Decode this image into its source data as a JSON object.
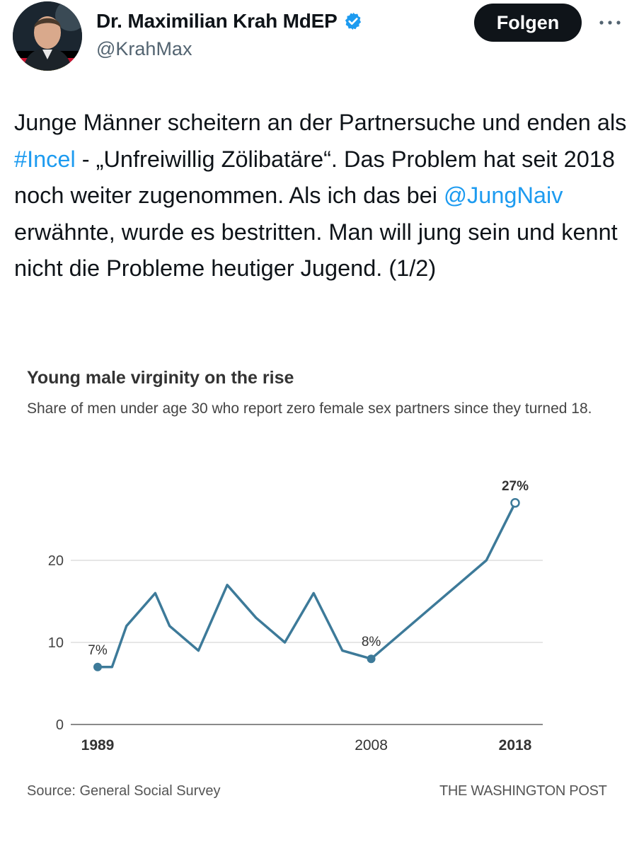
{
  "tweet": {
    "author": {
      "display_name": "Dr. Maximilian Krah MdEP",
      "handle": "@KrahMax",
      "verified": true
    },
    "follow_label": "Folgen",
    "more_icon": "more-horizontal-icon",
    "text_parts": {
      "p1": "Junge Männer scheitern an der Partnersuche und enden als ",
      "hashtag": "#Incel",
      "p2": " - „Unfreiwillig Zölibatäre“. Das Problem hat seit 2018 noch weiter zugenommen. Als ich das bei ",
      "mention": "@JungNaiv",
      "p3": " erwähnte, wurde es bestritten. Man will jung sein und kennt nicht die Probleme heutiger Jugend. (1/2)"
    }
  },
  "colors": {
    "link": "#1d9bf0",
    "verified": "#1d9bf0",
    "follow_bg": "#0f1419",
    "line": "#3d7a99"
  },
  "chart": {
    "title": "Young male virginity on the rise",
    "subtitle": "Share of men under age 30 who report zero female sex partners since they turned 18.",
    "source": "Source: General Social Survey",
    "publisher": "THE WASHINGTON POST"
  },
  "chart_data": {
    "type": "line",
    "title": "Young male virginity on the rise",
    "subtitle": "Share of men under age 30 who report zero female sex partners since they turned 18.",
    "x": [
      1989,
      1990,
      1991,
      1993,
      1994,
      1996,
      1998,
      2000,
      2002,
      2004,
      2006,
      2008,
      2010,
      2012,
      2014,
      2016,
      2018
    ],
    "values": [
      7,
      7,
      12,
      16,
      12,
      9,
      17,
      13,
      10,
      16,
      9,
      8,
      11,
      14,
      17,
      20,
      27
    ],
    "ylim": [
      0,
      30
    ],
    "yticks": [
      0,
      10,
      20
    ],
    "xtick_labels": [
      "1989",
      "2008",
      "2018"
    ],
    "annotations": [
      {
        "x": 1989,
        "y": 7,
        "label": "7%"
      },
      {
        "x": 2008,
        "y": 8,
        "label": "8%"
      },
      {
        "x": 2018,
        "y": 27,
        "label": "27%"
      }
    ],
    "grid": true,
    "legend": "none"
  }
}
